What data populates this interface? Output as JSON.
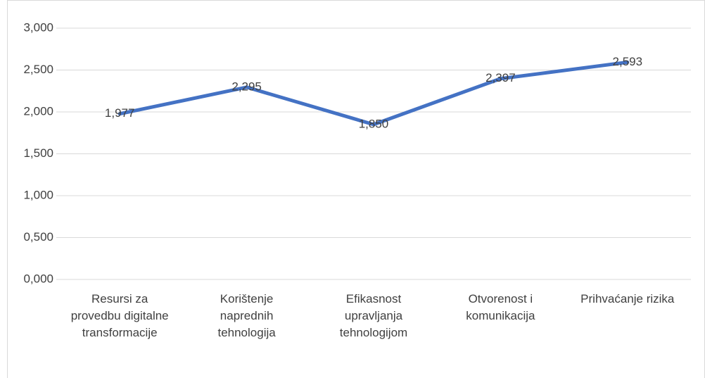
{
  "chart_data": {
    "type": "line",
    "categories": [
      "Resursi za provedbu digitalne transformacije",
      "Korištenje naprednih tehnologija",
      "Efikasnost upravljanja tehnologijom",
      "Otvorenost i komunikacija",
      "Prihvaćanje rizika"
    ],
    "series": [
      {
        "color": "#4472c4",
        "values": [
          1.977,
          2.295,
          1.85,
          2.397,
          2.593
        ],
        "value_labels": [
          "1,977",
          "2,295",
          "1,850",
          "2,397",
          "2,593"
        ]
      }
    ],
    "ylim": [
      0,
      3
    ],
    "yticks": [
      {
        "value": 0,
        "label": "0,000"
      },
      {
        "value": 0.5,
        "label": "0,500"
      },
      {
        "value": 1,
        "label": "1,000"
      },
      {
        "value": 1.5,
        "label": "1,500"
      },
      {
        "value": 2,
        "label": "2,000"
      },
      {
        "value": 2.5,
        "label": "2,500"
      },
      {
        "value": 3,
        "label": "3,000"
      }
    ],
    "grid": true
  }
}
